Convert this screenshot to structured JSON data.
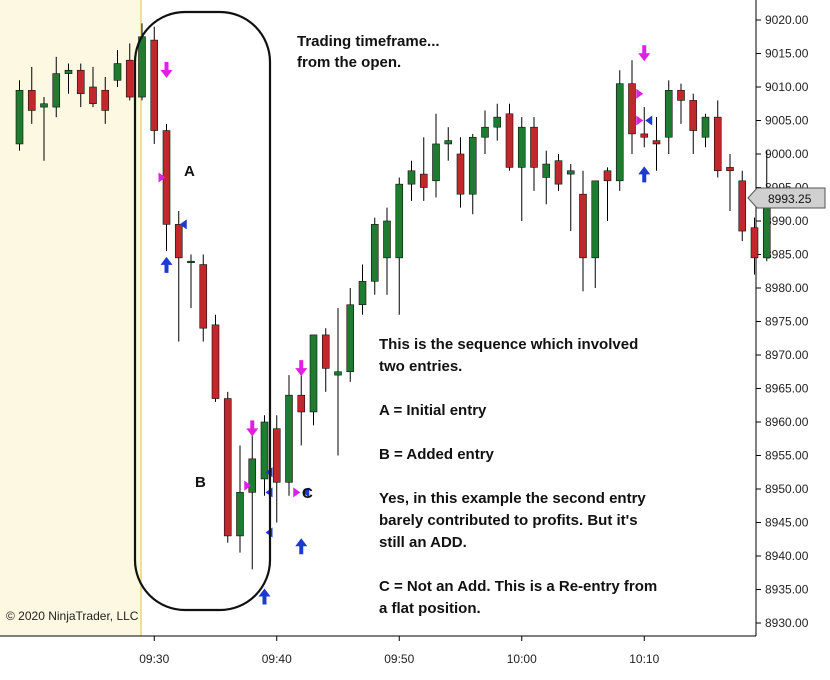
{
  "copyright": "© 2020 NinjaTrader, LLC",
  "colors": {
    "up": "#1e7b30",
    "down": "#c0282b",
    "wick": "#000000",
    "session_shade": "#fdf8e1",
    "session_line": "#e8d770",
    "marker_magenta": "#e020e0",
    "marker_blue": "#1a3ad0",
    "grid": "#cccccc"
  },
  "annotations": {
    "title_line1": "Trading timeframe...",
    "title_line2": "from the open.",
    "label_a": "A",
    "label_b": "B",
    "label_c": "C",
    "text_l1": "This is the sequence which involved",
    "text_l2": "two entries.",
    "text_l3": "A = Initial entry",
    "text_l4": "B = Added entry",
    "text_l5": "Yes, in this example the second entry",
    "text_l6": "barely contributed to profits. But it's",
    "text_l7": "still an ADD.",
    "text_l8": "C = Not an Add. This is a Re-entry from",
    "text_l9": "a flat position."
  },
  "chart_data": {
    "type": "candlestick",
    "title": "",
    "ylabel": "",
    "xlabel": "",
    "ylim": [
      8927.5,
      9023.0
    ],
    "yticks": [
      9020,
      9015,
      9010,
      9005,
      9000,
      8995,
      8990,
      8985,
      8980,
      8975,
      8970,
      8965,
      8960,
      8955,
      8950,
      8945,
      8940,
      8935,
      8930
    ],
    "ytick_labels": [
      "9020.00",
      "9015.00",
      "9010.00",
      "9005.00",
      "9000.00",
      "8995.00",
      "8990.00",
      "8985.00",
      "8980.00",
      "8975.00",
      "8970.00",
      "8965.00",
      "8960.00",
      "8955.00",
      "8950.00",
      "8945.00",
      "8940.00",
      "8935.00",
      "8930.00"
    ],
    "xticks": [
      {
        "label": "09:30",
        "bar": 11
      },
      {
        "label": "09:40",
        "bar": 21
      },
      {
        "label": "09:50",
        "bar": 31
      },
      {
        "label": "10:00",
        "bar": 41
      },
      {
        "label": "10:10",
        "bar": 51
      }
    ],
    "current_price": "8993.25",
    "candles": [
      {
        "o": 9001.5,
        "h": 9011.0,
        "l": 9000.5,
        "c": 9009.5
      },
      {
        "o": 9009.5,
        "h": 9013.0,
        "l": 9004.5,
        "c": 9006.5
      },
      {
        "o": 9007.0,
        "h": 9008.5,
        "l": 8999.0,
        "c": 9007.5
      },
      {
        "o": 9007.0,
        "h": 9014.5,
        "l": 9005.5,
        "c": 9012.0
      },
      {
        "o": 9012.0,
        "h": 9013.5,
        "l": 9009.0,
        "c": 9012.5
      },
      {
        "o": 9012.5,
        "h": 9013.5,
        "l": 9007.0,
        "c": 9009.0
      },
      {
        "o": 9010.0,
        "h": 9013.0,
        "l": 9007.0,
        "c": 9007.5
      },
      {
        "o": 9009.5,
        "h": 9011.5,
        "l": 9004.5,
        "c": 9006.5
      },
      {
        "o": 9011.0,
        "h": 9015.5,
        "l": 9010.0,
        "c": 9013.5
      },
      {
        "o": 9014.0,
        "h": 9016.5,
        "l": 9008.0,
        "c": 9008.5
      },
      {
        "o": 9008.5,
        "h": 9019.5,
        "l": 9008.0,
        "c": 9017.5
      },
      {
        "o": 9017.0,
        "h": 9019.0,
        "l": 9001.5,
        "c": 9003.5
      },
      {
        "o": 9003.5,
        "h": 9004.5,
        "l": 8985.5,
        "c": 8989.5
      },
      {
        "o": 8989.5,
        "h": 8991.5,
        "l": 8972.0,
        "c": 8984.5
      },
      {
        "o": 8984.0,
        "h": 8985.0,
        "l": 8977.0,
        "c": 8984.0
      },
      {
        "o": 8983.5,
        "h": 8985.0,
        "l": 8972.0,
        "c": 8974.0
      },
      {
        "o": 8974.5,
        "h": 8976.0,
        "l": 8963.0,
        "c": 8963.5
      },
      {
        "o": 8963.5,
        "h": 8964.5,
        "l": 8942.0,
        "c": 8943.0
      },
      {
        "o": 8943.0,
        "h": 8956.5,
        "l": 8940.5,
        "c": 8949.5
      },
      {
        "o": 8949.5,
        "h": 8958.5,
        "l": 8938.0,
        "c": 8954.5
      },
      {
        "o": 8951.5,
        "h": 8961.0,
        "l": 8949.0,
        "c": 8960.0
      },
      {
        "o": 8959.0,
        "h": 8961.0,
        "l": 8945.0,
        "c": 8951.0
      },
      {
        "o": 8951.0,
        "h": 8967.0,
        "l": 8949.0,
        "c": 8964.0
      },
      {
        "o": 8964.0,
        "h": 8967.5,
        "l": 8956.5,
        "c": 8961.5
      },
      {
        "o": 8961.5,
        "h": 8973.0,
        "l": 8959.5,
        "c": 8973.0
      },
      {
        "o": 8973.0,
        "h": 8974.0,
        "l": 8964.5,
        "c": 8968.0
      },
      {
        "o": 8967.0,
        "h": 8977.0,
        "l": 8955.0,
        "c": 8967.5
      },
      {
        "o": 8967.5,
        "h": 8980.0,
        "l": 8966.0,
        "c": 8977.5
      },
      {
        "o": 8977.5,
        "h": 8983.5,
        "l": 8976.0,
        "c": 8981.0
      },
      {
        "o": 8981.0,
        "h": 8990.5,
        "l": 8979.0,
        "c": 8989.5
      },
      {
        "o": 8984.5,
        "h": 8992.0,
        "l": 8979.0,
        "c": 8990.0
      },
      {
        "o": 8984.5,
        "h": 8996.5,
        "l": 8976.0,
        "c": 8995.5
      },
      {
        "o": 8995.5,
        "h": 8999.0,
        "l": 8993.0,
        "c": 8997.5
      },
      {
        "o": 8997.0,
        "h": 9002.5,
        "l": 8993.0,
        "c": 8995.0
      },
      {
        "o": 8996.0,
        "h": 9006.0,
        "l": 8993.5,
        "c": 9001.5
      },
      {
        "o": 9001.5,
        "h": 9004.0,
        "l": 8999.0,
        "c": 9002.0
      },
      {
        "o": 9000.0,
        "h": 9002.5,
        "l": 8992.0,
        "c": 8994.0
      },
      {
        "o": 8994.0,
        "h": 9003.0,
        "l": 8991.0,
        "c": 9002.5
      },
      {
        "o": 9002.5,
        "h": 9006.5,
        "l": 9000.0,
        "c": 9004.0
      },
      {
        "o": 9004.0,
        "h": 9007.5,
        "l": 9002.0,
        "c": 9005.5
      },
      {
        "o": 9006.0,
        "h": 9007.5,
        "l": 8997.5,
        "c": 8998.0
      },
      {
        "o": 8998.0,
        "h": 9005.5,
        "l": 8990.0,
        "c": 9004.0
      },
      {
        "o": 9004.0,
        "h": 9005.5,
        "l": 8994.5,
        "c": 8998.0
      },
      {
        "o": 8996.5,
        "h": 9000.5,
        "l": 8992.5,
        "c": 8998.5
      },
      {
        "o": 8999.0,
        "h": 9000.0,
        "l": 8994.5,
        "c": 8995.5
      },
      {
        "o": 8997.0,
        "h": 8998.5,
        "l": 8988.5,
        "c": 8997.5
      },
      {
        "o": 8994.0,
        "h": 8997.5,
        "l": 8979.5,
        "c": 8984.5
      },
      {
        "o": 8984.5,
        "h": 8996.0,
        "l": 8980.0,
        "c": 8996.0
      },
      {
        "o": 8997.5,
        "h": 8998.0,
        "l": 8990.0,
        "c": 8996.0
      },
      {
        "o": 8996.0,
        "h": 9012.5,
        "l": 8994.5,
        "c": 9010.5
      },
      {
        "o": 9010.5,
        "h": 9014.0,
        "l": 9000.0,
        "c": 9003.0
      },
      {
        "o": 9003.0,
        "h": 9007.0,
        "l": 9001.0,
        "c": 9002.5
      },
      {
        "o": 9002.0,
        "h": 9005.5,
        "l": 8997.5,
        "c": 9001.5
      },
      {
        "o": 9002.5,
        "h": 9011.0,
        "l": 9000.0,
        "c": 9009.5
      },
      {
        "o": 9009.5,
        "h": 9010.5,
        "l": 9004.5,
        "c": 9008.0
      },
      {
        "o": 9008.0,
        "h": 9009.0,
        "l": 9000.0,
        "c": 9003.5
      },
      {
        "o": 9002.5,
        "h": 9006.0,
        "l": 9001.0,
        "c": 9005.5
      },
      {
        "o": 9005.5,
        "h": 9008.0,
        "l": 8996.5,
        "c": 8997.5
      },
      {
        "o": 8998.0,
        "h": 9000.0,
        "l": 8991.5,
        "c": 8997.5
      },
      {
        "o": 8996.0,
        "h": 8997.5,
        "l": 8987.0,
        "c": 8988.5
      },
      {
        "o": 8989.0,
        "h": 8990.5,
        "l": 8982.0,
        "c": 8984.5
      },
      {
        "o": 8984.5,
        "h": 9000.5,
        "l": 8984.0,
        "c": 8992.0
      }
    ],
    "markers": [
      {
        "bar": 12,
        "shape": "arrow-down",
        "color": "magenta",
        "price": 9011.5
      },
      {
        "bar": 12,
        "shape": "tri-right",
        "color": "magenta",
        "price": 8996.5
      },
      {
        "bar": 13,
        "shape": "tri-left",
        "color": "blue",
        "price": 8989.5
      },
      {
        "bar": 12,
        "shape": "arrow-up",
        "color": "blue",
        "price": 8984.5
      },
      {
        "bar": 19,
        "shape": "arrow-down",
        "color": "magenta",
        "price": 8958.0
      },
      {
        "bar": 19,
        "shape": "tri-right",
        "color": "magenta",
        "price": 8950.5
      },
      {
        "bar": 20,
        "shape": "tri-left",
        "color": "blue",
        "price": 8949.5
      },
      {
        "bar": 20,
        "shape": "tri-left",
        "color": "blue",
        "price": 8952.5
      },
      {
        "bar": 20,
        "shape": "tri-left",
        "color": "blue",
        "price": 8943.5
      },
      {
        "bar": 20,
        "shape": "arrow-up",
        "color": "blue",
        "price": 8935.0
      },
      {
        "bar": 23,
        "shape": "arrow-down",
        "color": "magenta",
        "price": 8967.0
      },
      {
        "bar": 23,
        "shape": "tri-right",
        "color": "magenta",
        "price": 8949.5
      },
      {
        "bar": 23,
        "shape": "tri-left",
        "color": "blue",
        "price": 8949.5
      },
      {
        "bar": 23,
        "shape": "arrow-up",
        "color": "blue",
        "price": 8942.5
      },
      {
        "bar": 51,
        "shape": "arrow-down",
        "color": "magenta",
        "price": 9014.0
      },
      {
        "bar": 51,
        "shape": "tri-right",
        "color": "magenta",
        "price": 9009.0
      },
      {
        "bar": 51,
        "shape": "tri-right",
        "color": "magenta",
        "price": 9005.0
      },
      {
        "bar": 51,
        "shape": "tri-left",
        "color": "blue",
        "price": 9005.0
      },
      {
        "bar": 51,
        "shape": "arrow-up",
        "color": "blue",
        "price": 8998.0
      }
    ]
  }
}
